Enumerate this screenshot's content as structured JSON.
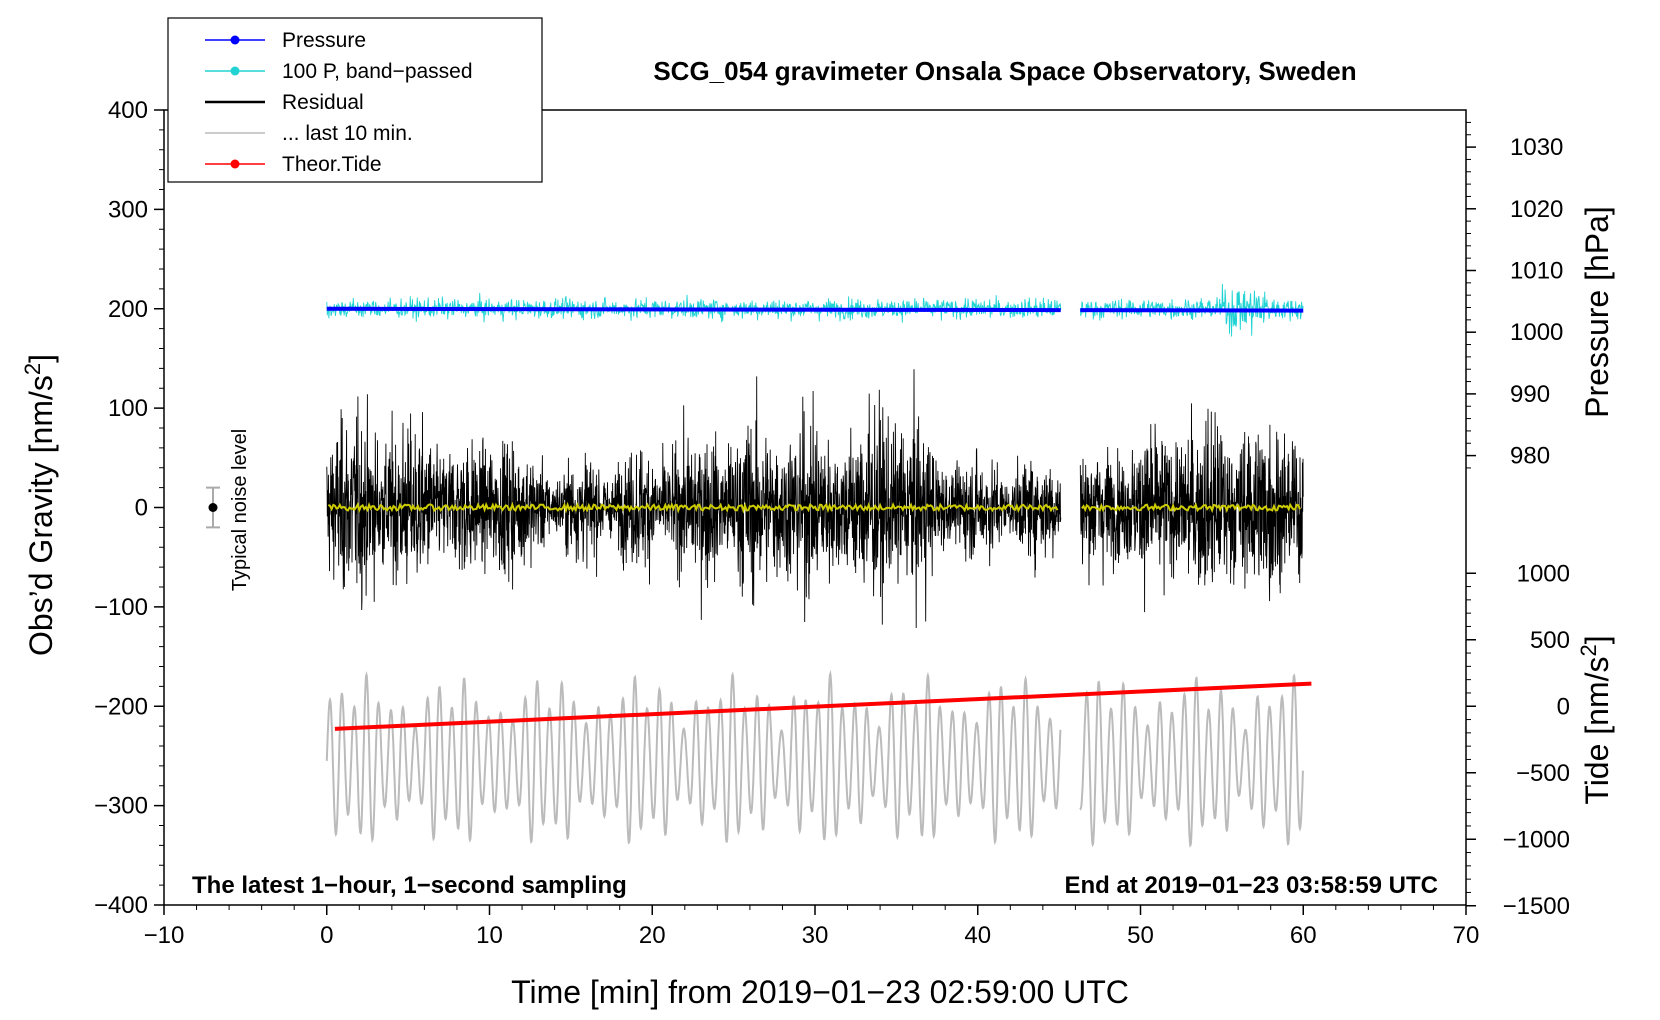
{
  "chart_data": {
    "type": "line",
    "title": "SCG_054 gravimeter Onsala Space Observatory, Sweden",
    "xlabel": "Time [min] from 2019−01−23 02:59:00 UTC",
    "ylabel_left": "Obs’d Gravity [nm/s",
    "ylabel_left_sup": "2",
    "ylabel_left_end": "]",
    "ylabel_right_pressure": "Pressure [hPa]",
    "ylabel_right_tide": "Tide [nm/s",
    "ylabel_right_tide_sup": "2",
    "ylabel_right_tide_end": "]",
    "xlim": [
      -10,
      70
    ],
    "ylim": [
      -400,
      400
    ],
    "x_ticks": [
      "−10",
      "0",
      "10",
      "20",
      "30",
      "40",
      "50",
      "60",
      "70"
    ],
    "y_ticks": [
      "400",
      "300",
      "200",
      "100",
      "0",
      "−100",
      "−200",
      "−300",
      "−400"
    ],
    "pressure_ticks": [
      "1030",
      "1020",
      "1010",
      "1000",
      "990",
      "980"
    ],
    "pressure_range": [
      980,
      1030
    ],
    "tide_ticks": [
      "1000",
      "500",
      "0",
      "−500",
      "−1000",
      "−1500"
    ],
    "tide_range": [
      -1500,
      1000
    ],
    "note_left": "The latest 1−hour, 1−second sampling",
    "note_right": "End at 2019−01−23 03:58:59 UTC",
    "noise_label": "Typical noise level",
    "noise_bar_range": [
      -20,
      20
    ],
    "data_gap_min": [
      45.1,
      46.3
    ],
    "legend": [
      {
        "label": "Pressure",
        "color": "#0000ff"
      },
      {
        "label": "100 P, band−passed",
        "color": "#22d3d3"
      },
      {
        "label": "Residual",
        "color": "#000000"
      },
      {
        "label": "... last 10 min.",
        "color": "#bbbbbb"
      },
      {
        "label": "Theor.Tide",
        "color": "#ff0000"
      }
    ],
    "series": [
      {
        "name": "Pressure",
        "unit": "hPa",
        "start": 1003.8,
        "end": 1003.5
      },
      {
        "name": "100 P, band−passed",
        "unit": "nm/s2",
        "baseline": 200
      },
      {
        "name": "Residual",
        "unit": "nm/s2",
        "baseline": 0,
        "amplitude_approx": 150
      },
      {
        "name": "Residual smoothed",
        "unit": "nm/s2",
        "baseline": 0,
        "color": "#cccc00"
      },
      {
        "name": "... last 10 min.",
        "unit": "nm/s2",
        "baseline": -255,
        "amplitude_approx": 80
      },
      {
        "name": "Theor.Tide",
        "unit": "nm/s2 (tide axis)",
        "start": -170,
        "end": 170
      }
    ]
  }
}
